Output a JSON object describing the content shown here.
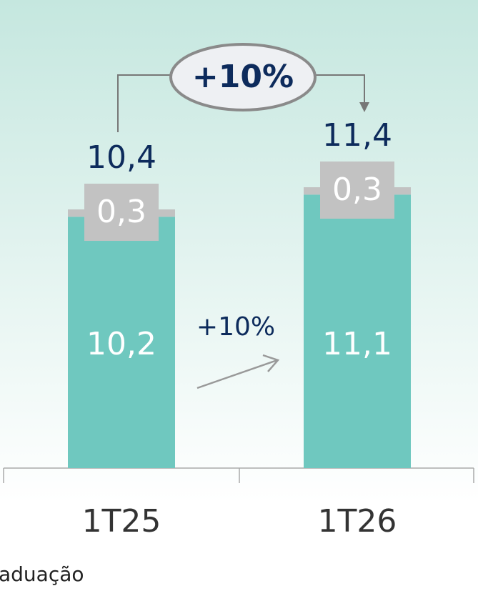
{
  "chart_data": {
    "type": "stacked_bar",
    "categories": [
      "1T25",
      "1T26"
    ],
    "series": [
      {
        "color": "#6fc8bf",
        "values": [
          10.2,
          11.1
        ],
        "value_labels": [
          "10,2",
          "11,1"
        ]
      },
      {
        "color": "#c2c2c2",
        "values": [
          0.3,
          0.3
        ],
        "value_labels": [
          "0,3",
          "0,3"
        ]
      }
    ],
    "total_values": [
      10.4,
      11.4
    ],
    "total_labels": [
      "10,4",
      "11,4"
    ],
    "ylim": [
      0,
      19
    ],
    "annotations": {
      "growth_total": "+10%",
      "growth_bottom": "+10%"
    },
    "footer_text": "aduação"
  }
}
